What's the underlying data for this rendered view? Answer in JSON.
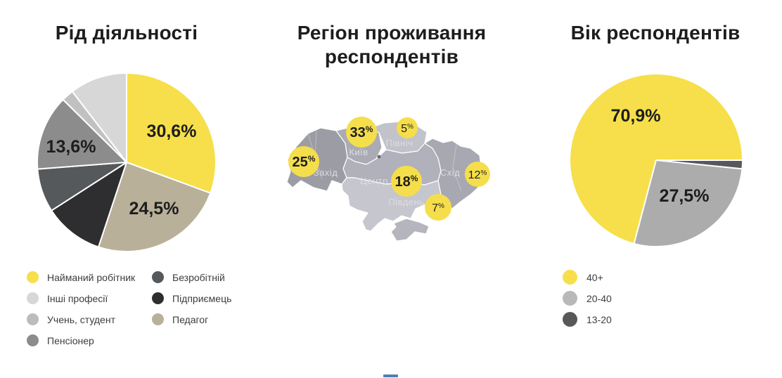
{
  "page": {
    "background": "#FFFFFF",
    "accent_yellow": "#F6DF4A"
  },
  "activity": {
    "title": "Рід діяльності",
    "slices": [
      {
        "label": "Найманий робітник",
        "value": 30.6,
        "display": "30,6%",
        "color": "#F6DF4A"
      },
      {
        "label": "Педагог",
        "value": 24.5,
        "display": "24,5%",
        "color": "#B8B098"
      },
      {
        "label": "Підприємець",
        "value": 10.8,
        "display": "",
        "color": "#2E2E30"
      },
      {
        "label": "Безробітній",
        "value": 7.9,
        "display": "",
        "color": "#56595B"
      },
      {
        "label": "Пенсіонер",
        "value": 13.6,
        "display": "13,6%",
        "color": "#8C8C8C"
      },
      {
        "label": "Учень, студент",
        "value": 2.2,
        "display": "",
        "color": "#C1C1C1"
      },
      {
        "label": "Інші професії",
        "value": 10.4,
        "display": "",
        "color": "#D7D7D7"
      }
    ],
    "legend_columns": [
      [
        {
          "label": "Найманий робітник",
          "color": "#F6DF4A"
        },
        {
          "label": "Інші професії",
          "color": "#D7D7D7"
        },
        {
          "label": "Учень, студент",
          "color": "#BCBCBC"
        },
        {
          "label": "Пенсіонер",
          "color": "#8C8C8C"
        }
      ],
      [
        {
          "label": "Безробітній",
          "color": "#56595B"
        },
        {
          "label": "Підприємець",
          "color": "#2E2E30"
        },
        {
          "label": "Педагог",
          "color": "#B8B098"
        }
      ]
    ]
  },
  "map": {
    "title_lines": [
      "Регіон проживання",
      "респондентів"
    ],
    "circle_color": "#F5DE4B",
    "regions": [
      {
        "id": "zakhid",
        "name": "Захід",
        "value": "25",
        "emphasis": true,
        "fill": "#9C9CA5"
      },
      {
        "id": "kyiv",
        "name": "Київ",
        "value": "33",
        "emphasis": true,
        "fill": "#ABABB5"
      },
      {
        "id": "pivnich",
        "name": "Північ",
        "value": "5",
        "emphasis": false,
        "fill": "#C2C2CA"
      },
      {
        "id": "tsentr",
        "name": "Центр",
        "value": "18",
        "emphasis": true,
        "fill": "#B1B1BB"
      },
      {
        "id": "skhid",
        "name": "Схід",
        "value": "12",
        "emphasis": false,
        "fill": "#A8A8B2"
      },
      {
        "id": "pivden",
        "name": "Південь",
        "value": "7",
        "emphasis": false,
        "fill": "#C6C6CE"
      },
      {
        "id": "krym",
        "name": "",
        "value": "",
        "emphasis": false,
        "fill": "#B5B5BD"
      }
    ]
  },
  "age": {
    "title": "Вік респондентів",
    "slices": [
      {
        "label": "40+",
        "value": 70.9,
        "display": "70,9%",
        "color": "#F6DF4A",
        "start_deg": 194.8
      },
      {
        "label": "13-20",
        "value": 1.6,
        "display": "",
        "color": "#58585A",
        "start_deg": 90
      },
      {
        "label": "20-40",
        "value": 27.5,
        "display": "27,5%",
        "color": "#ACACAC",
        "start_deg": 95.8
      }
    ],
    "legend": [
      {
        "label": "40+",
        "color": "#F6DF4A"
      },
      {
        "label": "20-40",
        "color": "#B9B9B9"
      },
      {
        "label": "13-20",
        "color": "#58585A"
      }
    ]
  },
  "footer": {
    "partial_bar_color": "#4C7FB8"
  },
  "chart_data": [
    {
      "type": "pie",
      "title": "Рід діяльності",
      "categories": [
        "Найманий робітник",
        "Педагог",
        "Підприємець",
        "Безробітній",
        "Пенсіонер",
        "Учень, студент",
        "Інші професії"
      ],
      "values": [
        30.6,
        24.5,
        10.8,
        7.9,
        13.6,
        2.2,
        10.4
      ],
      "labeled_values": {
        "Найманий робітник": "30,6%",
        "Педагог": "24,5%",
        "Пенсіонер": "13,6%"
      },
      "note": "slices without printed labels estimated from slice angles",
      "legend_position": "bottom",
      "start_angle": "top, clockwise"
    },
    {
      "type": "map",
      "title": "Регіон проживання респондентів",
      "categories": [
        "Захід",
        "Київ",
        "Північ",
        "Центр",
        "Схід",
        "Південь"
      ],
      "values": [
        25,
        33,
        5,
        18,
        12,
        7
      ],
      "unit": "%"
    },
    {
      "type": "pie",
      "title": "Вік респондентів",
      "categories": [
        "40+",
        "20-40",
        "13-20"
      ],
      "values": [
        70.9,
        27.5,
        1.6
      ],
      "labeled_values": {
        "40+": "70,9%",
        "20-40": "27,5%"
      },
      "note": "13-20 slice unlabeled, value = 100 - 70.9 - 27.5",
      "legend_position": "bottom",
      "start_angle": "top, clockwise"
    }
  ]
}
